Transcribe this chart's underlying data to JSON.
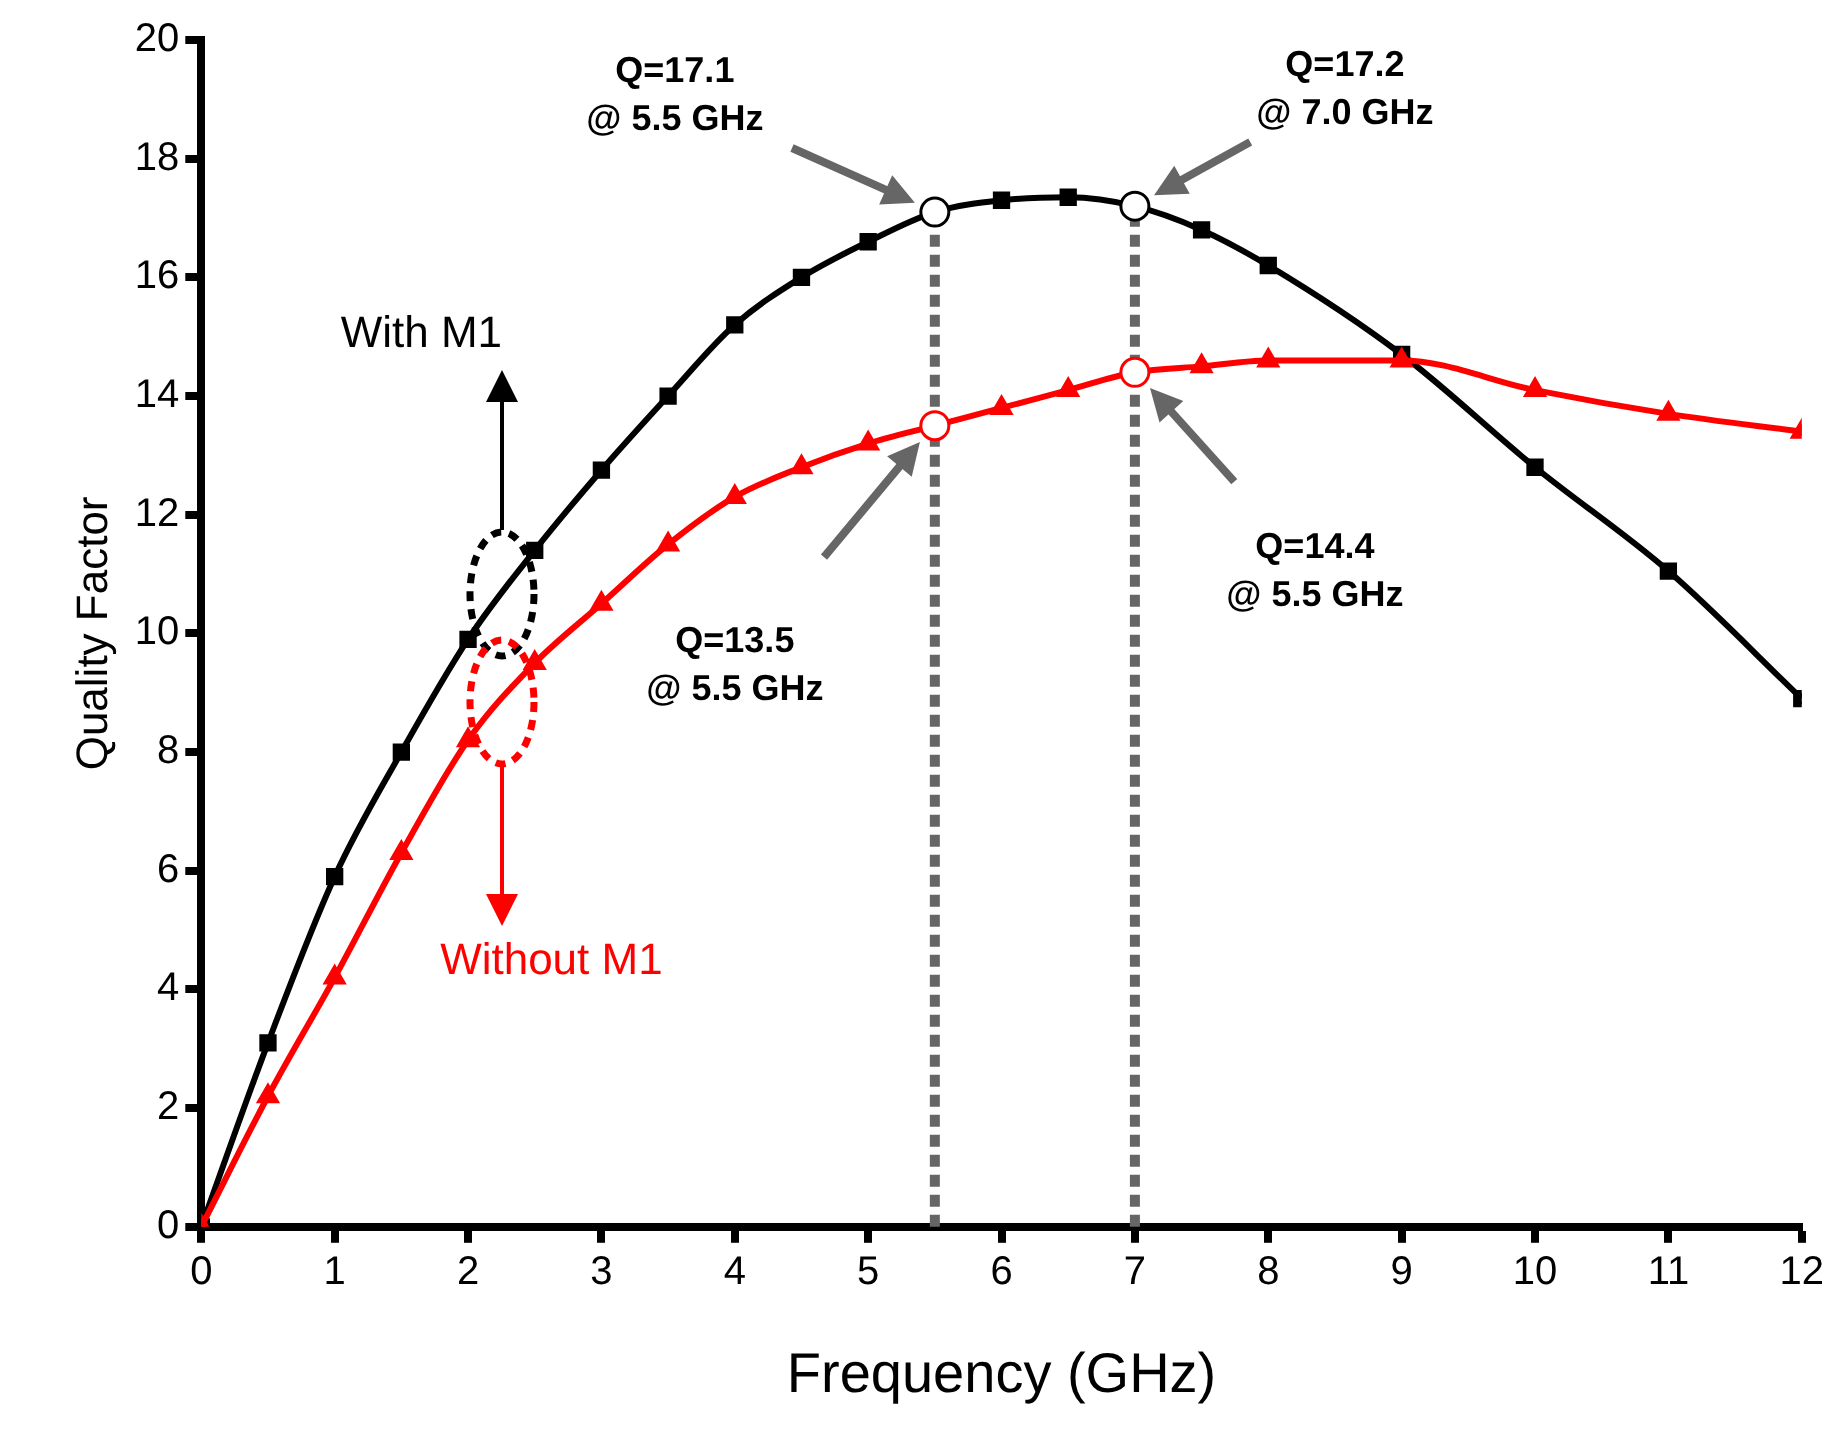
{
  "chart_data": {
    "type": "line",
    "xlabel": "Frequency (GHz)",
    "ylabel": "Quality Factor",
    "x": [
      0,
      0.5,
      1,
      1.5,
      2,
      2.5,
      3,
      3.5,
      4,
      4.5,
      5,
      5.5,
      6,
      6.5,
      7,
      7.5,
      8,
      9,
      10,
      11,
      12
    ],
    "series": [
      {
        "name": "With M1",
        "color": "#000000",
        "marker": "square",
        "values": [
          0,
          3.1,
          5.9,
          8.0,
          9.9,
          11.4,
          12.75,
          14.0,
          15.2,
          16.0,
          16.6,
          17.1,
          17.3,
          17.35,
          17.2,
          16.8,
          16.2,
          14.7,
          12.8,
          11.05,
          8.9
        ]
      },
      {
        "name": "Without M1",
        "color": "#ff0000",
        "marker": "triangle",
        "values": [
          0,
          2.2,
          4.2,
          6.3,
          8.2,
          9.5,
          10.5,
          11.5,
          12.3,
          12.8,
          13.2,
          13.5,
          13.8,
          14.1,
          14.4,
          14.5,
          14.6,
          14.6,
          14.1,
          13.7,
          13.4
        ]
      }
    ],
    "xlim": [
      0,
      12
    ],
    "xticks": [
      0,
      1,
      2,
      3,
      4,
      5,
      6,
      7,
      8,
      9,
      10,
      11,
      12
    ],
    "ylim": [
      0,
      20
    ],
    "yticks": [
      0,
      2,
      4,
      6,
      8,
      10,
      12,
      14,
      16,
      18,
      20
    ],
    "grid": false,
    "legend": "left",
    "ref_lines": [
      {
        "axis": "x",
        "value": 5.5,
        "color": "#666666",
        "line_style": "dashed"
      },
      {
        "axis": "x",
        "value": 7,
        "color": "#666666",
        "line_style": "dashed"
      }
    ],
    "annotations": [
      "Q=17.1\n@ 5.5 GHz",
      "Q=17.2\n@ 7.0 GHz",
      "Q=13.5\n@ 5.5 GHz",
      "Q=14.4\n@ 5.5 GHz"
    ]
  }
}
